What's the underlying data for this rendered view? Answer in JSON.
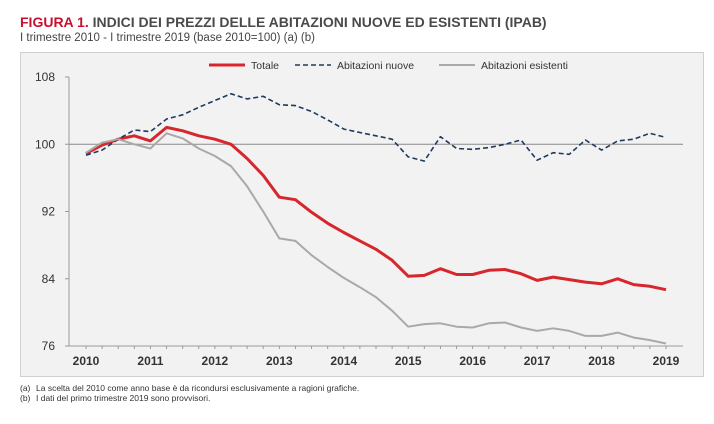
{
  "figure": {
    "label": "FIGURA 1.",
    "title": "INDICI DEI PREZZI DELLE ABITAZIONI NUOVE ED ESISTENTI (IPAB)",
    "subtitle": "I trimestre 2010 - I trimestre 2019 (base 2010=100) (a) (b)"
  },
  "notes": [
    {
      "mark": "(a)",
      "text": "La scelta del 2010 come anno base è da ricondursi esclusivamente a ragioni grafiche."
    },
    {
      "mark": "(b)",
      "text": "I dati del primo trimestre 2019 sono provvisori."
    }
  ],
  "chart_data": {
    "type": "line",
    "title": "",
    "xlabel": "",
    "ylabel": "",
    "x": [
      "2010 T1",
      "2010 T2",
      "2010 T3",
      "2010 T4",
      "2011 T1",
      "2011 T2",
      "2011 T3",
      "2011 T4",
      "2012 T1",
      "2012 T2",
      "2012 T3",
      "2012 T4",
      "2013 T1",
      "2013 T2",
      "2013 T3",
      "2013 T4",
      "2014 T1",
      "2014 T2",
      "2014 T3",
      "2014 T4",
      "2015 T1",
      "2015 T2",
      "2015 T3",
      "2015 T4",
      "2016 T1",
      "2016 T2",
      "2016 T3",
      "2016 T4",
      "2017 T1",
      "2017 T2",
      "2017 T3",
      "2017 T4",
      "2018 T1",
      "2018 T2",
      "2018 T3",
      "2018 T4",
      "2019 T1"
    ],
    "year_ticks": [
      "2010",
      "2011",
      "2012",
      "2013",
      "2014",
      "2015",
      "2016",
      "2017",
      "2018",
      "2019"
    ],
    "year_tick_index": [
      0,
      4,
      8,
      12,
      16,
      20,
      24,
      28,
      32,
      36
    ],
    "y_ticks": [
      76,
      84,
      92,
      100,
      108
    ],
    "ylim": [
      76,
      108
    ],
    "reference_line": 100,
    "grid": false,
    "legend_position": "top-center",
    "series": [
      {
        "name": "Totale",
        "color": "#d7262c",
        "style": "solid",
        "values": [
          98.9,
          99.9,
          100.6,
          101.0,
          100.4,
          102.0,
          101.6,
          101.0,
          100.6,
          100.0,
          98.3,
          96.3,
          93.7,
          93.4,
          91.9,
          90.6,
          89.5,
          88.5,
          87.5,
          86.2,
          84.3,
          84.4,
          85.2,
          84.5,
          84.5,
          85.0,
          85.1,
          84.6,
          83.8,
          84.2,
          83.9,
          83.6,
          83.4,
          84.0,
          83.3,
          83.1,
          82.7
        ]
      },
      {
        "name": "Abitazioni nuove",
        "color": "#1f3a5f",
        "style": "dashed",
        "values": [
          98.7,
          99.3,
          100.6,
          101.7,
          101.5,
          103.0,
          103.5,
          104.4,
          105.2,
          106.0,
          105.4,
          105.7,
          104.7,
          104.6,
          103.9,
          102.9,
          101.8,
          101.4,
          101.0,
          100.6,
          98.5,
          98.0,
          100.9,
          99.5,
          99.4,
          99.6,
          100.0,
          100.5,
          98.1,
          99.0,
          98.8,
          100.5,
          99.3,
          100.4,
          100.6,
          101.3,
          100.8
        ]
      },
      {
        "name": "Abitazioni esistenti",
        "color": "#a9a9a9",
        "style": "solid",
        "values": [
          99.0,
          100.2,
          100.6,
          100.0,
          99.5,
          101.3,
          100.7,
          99.5,
          98.6,
          97.4,
          95.0,
          92.0,
          88.8,
          88.5,
          86.8,
          85.4,
          84.1,
          83.0,
          81.8,
          80.2,
          78.3,
          78.6,
          78.7,
          78.3,
          78.2,
          78.7,
          78.8,
          78.2,
          77.8,
          78.1,
          77.8,
          77.2,
          77.2,
          77.6,
          77.0,
          76.7,
          76.3
        ]
      }
    ]
  }
}
